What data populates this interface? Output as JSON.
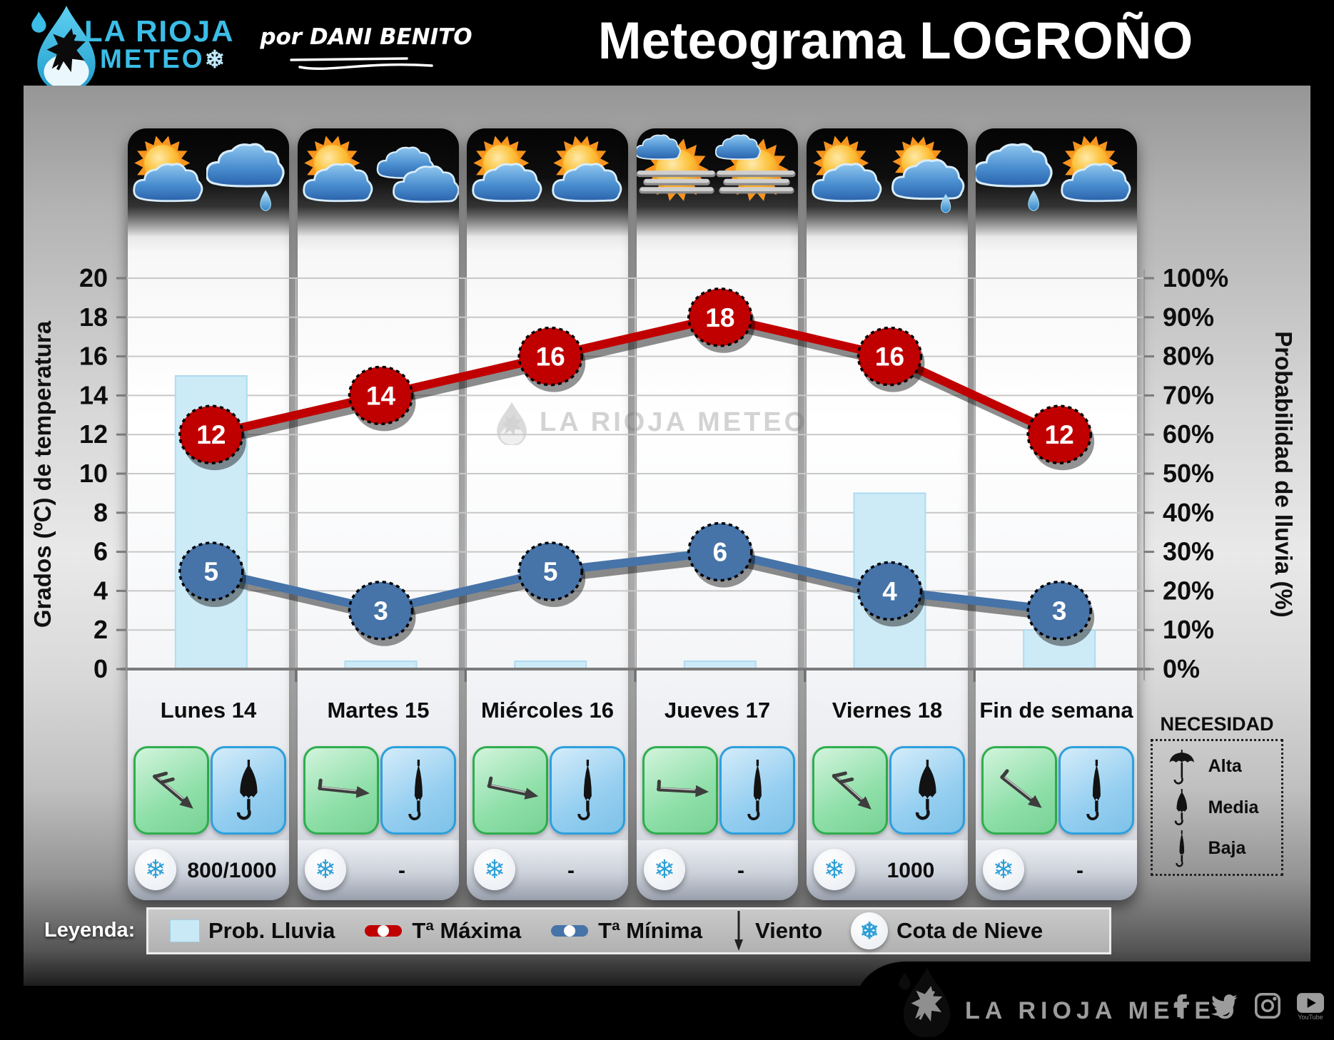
{
  "header": {
    "brand_top": "LA RIOJA",
    "brand_bottom": "METEO",
    "byline": "por DANI BENITO",
    "title_light": "Meteograma",
    "title_heavy": "LOGROÑO"
  },
  "watermark_text": "LA RIOJA METEO",
  "axes": {
    "left_title": "Grados (ºC) de temperatura",
    "right_title": "Probabilidad de lluvia (%)",
    "left_ticks": [
      "20",
      "18",
      "16",
      "14",
      "12",
      "10",
      "8",
      "6",
      "4",
      "2",
      "0"
    ],
    "right_ticks": [
      "100%",
      "90%",
      "80%",
      "70%",
      "60%",
      "50%",
      "40%",
      "30%",
      "20%",
      "10%",
      "0%"
    ]
  },
  "chart_data": {
    "type": "combo",
    "title": "Meteograma LOGROÑO",
    "categories": [
      "Lunes 14",
      "Martes 15",
      "Miércoles 16",
      "Jueves 17",
      "Viernes 18",
      "Fin de semana"
    ],
    "series": [
      {
        "name": "Prob. Lluvia",
        "type": "bar",
        "axis": "right",
        "unit": "%",
        "values": [
          75,
          2,
          2,
          2,
          45,
          10
        ]
      },
      {
        "name": "Tª Máxima",
        "type": "line",
        "axis": "left",
        "unit": "ºC",
        "values": [
          12,
          14,
          16,
          18,
          16,
          12
        ]
      },
      {
        "name": "Tª Mínima",
        "type": "line",
        "axis": "left",
        "unit": "ºC",
        "values": [
          5,
          3,
          5,
          6,
          4,
          3
        ]
      }
    ],
    "left_axis": {
      "min": 0,
      "max": 20,
      "step": 2
    },
    "right_axis": {
      "min": 0,
      "max": 100,
      "step": 10
    },
    "grid": true,
    "legend_position": "bottom"
  },
  "days": [
    {
      "label": "Lunes 14",
      "weather": [
        "sun-cloud",
        "cloud-rain"
      ],
      "wind_dir": 40,
      "wind_barbs": true,
      "umbrella": "media",
      "snow": "800/1000"
    },
    {
      "label": "Martes 15",
      "weather": [
        "sun-cloud",
        "clouds"
      ],
      "wind_dir": 6,
      "wind_barbs": false,
      "umbrella": "baja",
      "snow": "-"
    },
    {
      "label": "Miércoles 16",
      "weather": [
        "sun-cloud",
        "sun-cloud"
      ],
      "wind_dir": 12,
      "wind_barbs": false,
      "umbrella": "baja",
      "snow": "-"
    },
    {
      "label": "Jueves 17",
      "weather": [
        "sun-fog",
        "sun-fog"
      ],
      "wind_dir": 3,
      "wind_barbs": false,
      "umbrella": "baja",
      "snow": "-"
    },
    {
      "label": "Viernes 18",
      "weather": [
        "sun-cloud",
        "sun-cloud-rain"
      ],
      "wind_dir": 42,
      "wind_barbs": true,
      "umbrella": "media",
      "snow": "1000"
    },
    {
      "label": "Fin de semana",
      "weather": [
        "cloud-rain",
        "sun-cloud"
      ],
      "wind_dir": 38,
      "wind_barbs": false,
      "umbrella": "baja",
      "snow": "-"
    }
  ],
  "necesidad": {
    "title": "NECESIDAD",
    "items": [
      {
        "label": "Alta",
        "umbrella": "alta"
      },
      {
        "label": "Media",
        "umbrella": "media"
      },
      {
        "label": "Baja",
        "umbrella": "baja"
      }
    ]
  },
  "legend": {
    "label": "Leyenda:",
    "items": [
      {
        "name": "Prob. Lluvia",
        "icon": "rain-bar"
      },
      {
        "name": "Tª Máxima",
        "icon": "tmax-line"
      },
      {
        "name": "Tª Mínima",
        "icon": "tmin-line"
      },
      {
        "name": "Viento",
        "icon": "wind-arrow"
      },
      {
        "name": "Cota de Nieve",
        "icon": "snowflake"
      }
    ]
  },
  "footer": {
    "brand": "LA RIOJA METEO",
    "social": [
      {
        "name": "facebook"
      },
      {
        "name": "twitter"
      },
      {
        "name": "instagram"
      },
      {
        "name": "youtube",
        "caption": "YouTube"
      }
    ]
  },
  "colors": {
    "tmax": "#c00000",
    "tmin": "#4673a8",
    "rain_bar": "#cdeaf7",
    "brand_cyan": "#3bbde6",
    "snowflake_blue": "#2d9fd6",
    "green_box_border": "#2fae4e",
    "blue_box_border": "#2da0dc"
  }
}
